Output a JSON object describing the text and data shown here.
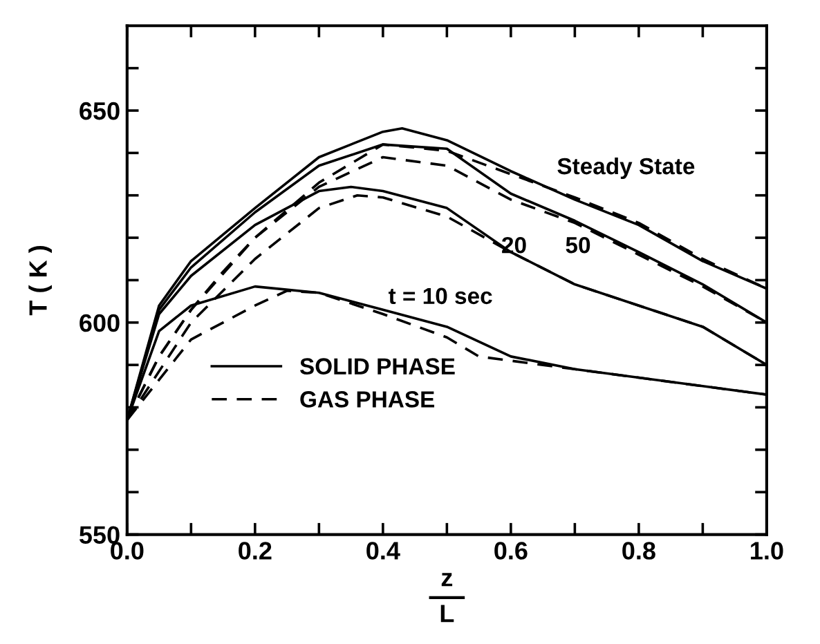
{
  "chart_data": {
    "type": "line",
    "xlabel": "z\nL",
    "ylabel": "T ( K )",
    "xlim": [
      0.0,
      1.0
    ],
    "ylim": [
      550,
      670
    ],
    "xticks": [
      {
        "value": 0.0,
        "label": "0.0"
      },
      {
        "value": 0.1,
        "label": null
      },
      {
        "value": 0.2,
        "label": "0.2"
      },
      {
        "value": 0.3,
        "label": null
      },
      {
        "value": 0.4,
        "label": "0.4"
      },
      {
        "value": 0.5,
        "label": null
      },
      {
        "value": 0.6,
        "label": "0.6"
      },
      {
        "value": 0.7,
        "label": null
      },
      {
        "value": 0.8,
        "label": "0.8"
      },
      {
        "value": 0.9,
        "label": null
      },
      {
        "value": 1.0,
        "label": "1.0"
      }
    ],
    "yticks": [
      550,
      {
        "value": 560,
        "label": null
      },
      {
        "value": 570,
        "label": null
      },
      {
        "value": 580,
        "label": null
      },
      {
        "value": 590,
        "label": null
      },
      600,
      {
        "value": 610,
        "label": null
      },
      {
        "value": 620,
        "label": null
      },
      {
        "value": 630,
        "label": null
      },
      {
        "value": 640,
        "label": null
      },
      650,
      {
        "value": 660,
        "label": null
      }
    ],
    "grid": false,
    "legend": "bottom left",
    "marker": "none",
    "series": [
      {
        "name": "SOLID PHASE",
        "color": "#000000",
        "line_style": "solid",
        "x": [
          0,
          0.05,
          0.1,
          0.2,
          0.3,
          0.4,
          0.43,
          0.5,
          0.6,
          0.7,
          0.8,
          0.9,
          1.0
        ],
        "values": [
          577,
          604,
          614.5,
          627,
          639,
          645,
          645.8,
          643,
          635.7,
          629,
          623,
          614.5,
          608
        ]
      },
      {
        "name": "GAS PHASE",
        "color": "#000000",
        "line_style": "dashed",
        "x": [
          0,
          0.05,
          0.1,
          0.2,
          0.3,
          0.4,
          0.5,
          0.6,
          0.7,
          0.8,
          0.9,
          1.0
        ],
        "values": [
          577,
          592,
          603,
          620,
          633,
          642,
          640.5,
          635,
          629.5,
          623.5,
          615,
          608
        ]
      },
      {
        "color": "#000000",
        "line_style": "solid",
        "x": [
          0,
          0.05,
          0.1,
          0.2,
          0.3,
          0.4,
          0.5,
          0.6,
          0.7,
          0.8,
          0.9,
          1.0
        ],
        "values": [
          577,
          603,
          613,
          626,
          637,
          642,
          641,
          630.4,
          624,
          616.6,
          609,
          600
        ]
      },
      {
        "color": "#000000",
        "line_style": "dashed",
        "x": [
          0,
          0.05,
          0.1,
          0.15,
          0.2,
          0.3,
          0.4,
          0.5,
          0.6,
          0.7,
          0.8,
          0.9,
          1.0
        ],
        "values": [
          577,
          592,
          603,
          612,
          620,
          632,
          639,
          637,
          629,
          623.5,
          616,
          608.5,
          600
        ]
      },
      {
        "color": "#000000",
        "line_style": "solid",
        "x": [
          0,
          0.05,
          0.1,
          0.2,
          0.3,
          0.35,
          0.4,
          0.5,
          0.6,
          0.7,
          0.8,
          0.9,
          1.0
        ],
        "values": [
          577,
          602,
          611,
          623,
          631,
          632,
          631,
          627,
          616.6,
          609,
          604,
          599,
          590
        ]
      },
      {
        "color": "#000000",
        "line_style": "dashed",
        "x": [
          0,
          0.1,
          0.2,
          0.3,
          0.36,
          0.4,
          0.5,
          0.6,
          0.7,
          0.8,
          0.9,
          1.0
        ],
        "values": [
          577,
          600,
          615,
          627,
          630,
          629.5,
          625,
          616.6,
          609,
          604,
          599,
          590
        ]
      },
      {
        "color": "#000000",
        "line_style": "solid",
        "x": [
          0,
          0.05,
          0.1,
          0.2,
          0.3,
          0.4,
          0.5,
          0.6,
          0.7,
          0.8,
          0.9,
          1.0
        ],
        "values": [
          577,
          598,
          604,
          608.5,
          607,
          603,
          599,
          592,
          589,
          587,
          585,
          583
        ]
      },
      {
        "color": "#000000",
        "line_style": "dashed",
        "x": [
          0,
          0.1,
          0.2,
          0.25,
          0.3,
          0.4,
          0.5,
          0.55,
          0.6,
          0.7,
          0.8,
          0.9,
          1.0
        ],
        "values": [
          577,
          596,
          604,
          607.5,
          607,
          602,
          596.5,
          592,
          591,
          589,
          587,
          585,
          583
        ]
      }
    ],
    "annotations": [
      "Steady State",
      "20",
      "50",
      "t = 10 sec"
    ]
  }
}
